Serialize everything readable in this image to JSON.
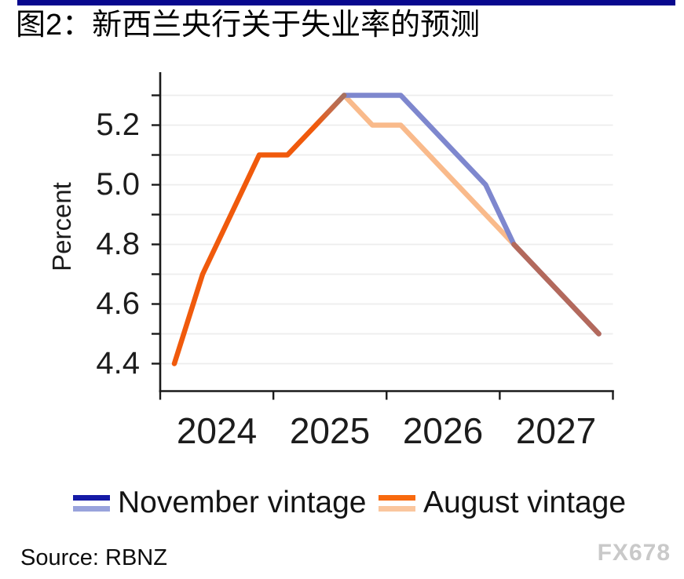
{
  "header": {
    "title": "图2：新西兰央行关于失业率的预测",
    "accent_bar_color": "#08088E"
  },
  "chart_data": {
    "type": "line",
    "title": "图2：新西兰央行关于失业率的预测",
    "ylabel": "Percent",
    "x_categories": [
      "2024 Q1",
      "2024 Q2",
      "2024 Q3",
      "2024 Q4",
      "2025 Q1",
      "2025 Q2",
      "2025 Q3",
      "2025 Q4",
      "2026 Q1",
      "2026 Q2",
      "2026 Q3",
      "2026 Q4",
      "2027 Q1",
      "2027 Q2",
      "2027 Q3",
      "2027 Q4"
    ],
    "x_tick_years": [
      "2024",
      "2025",
      "2026",
      "2027"
    ],
    "y_axis": {
      "tick_labels": [
        "5.2",
        "5.0",
        "4.8",
        "4.6",
        "4.4"
      ],
      "labeled_values": [
        5.2,
        5.0,
        4.8,
        4.6,
        4.4
      ],
      "grid_values": [
        4.4,
        4.5,
        4.6,
        4.7,
        4.8,
        4.9,
        5.0,
        5.1,
        5.2,
        5.3
      ],
      "range": [
        4.3,
        5.37
      ],
      "grid": "on"
    },
    "series": [
      {
        "name": "November vintage",
        "values": [
          4.4,
          4.7,
          4.9,
          5.1,
          5.1,
          5.2,
          5.3,
          5.3,
          5.3,
          5.2,
          5.1,
          5.0,
          4.8,
          4.7,
          4.6,
          4.5
        ]
      },
      {
        "name": "August vintage",
        "values": [
          4.4,
          4.7,
          4.9,
          5.1,
          5.1,
          5.2,
          5.3,
          5.2,
          5.2,
          5.1,
          5.0,
          4.9,
          4.8,
          4.7,
          4.6,
          4.5
        ]
      }
    ],
    "history_end_category": "2025 Q2",
    "history_end_index": 5,
    "overlap_tail_start_index": 12,
    "legend_position": "bottom",
    "style": {
      "history_color": "#F05A0C",
      "november_forecast_color": "#7E87CE",
      "august_forecast_color": "#F9BA8B",
      "overlap_tail_color": "#B3695C",
      "peak_blend_mid_color": "#C96A45",
      "peak_blend_color": "#A8705F",
      "grid_color": "#EDEDED",
      "axis_color": "#1A1A1A"
    }
  },
  "legend": {
    "items": [
      {
        "label": "November vintage",
        "swatch_dark": "#151AA6",
        "swatch_light": "#99A3DC"
      },
      {
        "label": "August vintage",
        "swatch_dark": "#F8690E",
        "swatch_light": "#FAC69E"
      }
    ]
  },
  "footer": {
    "source": "Source: RBNZ",
    "watermark": "FX678"
  }
}
